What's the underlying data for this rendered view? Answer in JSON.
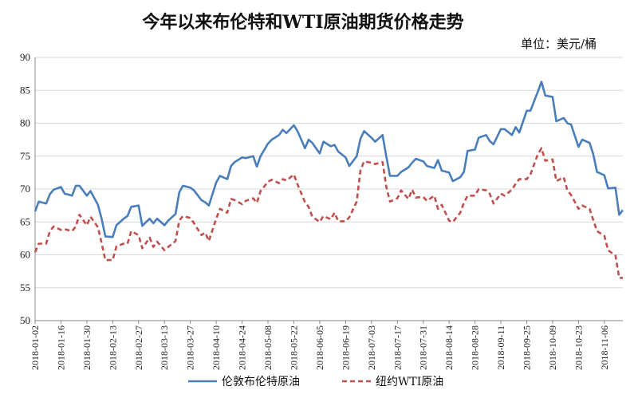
{
  "chart_data": {
    "type": "line",
    "title": "今年以来布伦特和WTI原油期货价格走势",
    "unit_label": "单位：美元/桶",
    "ylim": [
      50,
      90
    ],
    "yticks": [
      50,
      55,
      60,
      65,
      70,
      75,
      80,
      85,
      90
    ],
    "grid": "horizontal",
    "legend_position": "bottom",
    "x_tick_labels": [
      "2018-01-02",
      "2018-01-16",
      "2018-01-30",
      "2018-02-13",
      "2018-02-27",
      "2018-03-13",
      "2018-03-27",
      "2018-04-10",
      "2018-04-24",
      "2018-05-08",
      "2018-05-22",
      "2018-06-05",
      "2018-06-19",
      "2018-07-03",
      "2018-07-17",
      "2018-07-31",
      "2018-08-14",
      "2018-08-28",
      "2018-09-11",
      "2018-09-25",
      "2018-10-09",
      "2018-10-23",
      "2018-11-06"
    ],
    "x": [
      "2018-01-02",
      "2018-01-04",
      "2018-01-08",
      "2018-01-10",
      "2018-01-12",
      "2018-01-16",
      "2018-01-18",
      "2018-01-22",
      "2018-01-24",
      "2018-01-26",
      "2018-01-30",
      "2018-02-01",
      "2018-02-05",
      "2018-02-07",
      "2018-02-09",
      "2018-02-13",
      "2018-02-15",
      "2018-02-19",
      "2018-02-21",
      "2018-02-23",
      "2018-02-27",
      "2018-03-01",
      "2018-03-05",
      "2018-03-07",
      "2018-03-09",
      "2018-03-13",
      "2018-03-15",
      "2018-03-19",
      "2018-03-21",
      "2018-03-23",
      "2018-03-27",
      "2018-03-29",
      "2018-04-02",
      "2018-04-04",
      "2018-04-06",
      "2018-04-10",
      "2018-04-12",
      "2018-04-16",
      "2018-04-18",
      "2018-04-20",
      "2018-04-24",
      "2018-04-26",
      "2018-04-30",
      "2018-05-02",
      "2018-05-04",
      "2018-05-08",
      "2018-05-10",
      "2018-05-14",
      "2018-05-16",
      "2018-05-18",
      "2018-05-22",
      "2018-05-24",
      "2018-05-28",
      "2018-05-30",
      "2018-06-01",
      "2018-06-05",
      "2018-06-07",
      "2018-06-11",
      "2018-06-13",
      "2018-06-15",
      "2018-06-19",
      "2018-06-21",
      "2018-06-25",
      "2018-06-27",
      "2018-06-29",
      "2018-07-03",
      "2018-07-05",
      "2018-07-09",
      "2018-07-11",
      "2018-07-13",
      "2018-07-17",
      "2018-07-19",
      "2018-07-23",
      "2018-07-25",
      "2018-07-27",
      "2018-07-31",
      "2018-08-02",
      "2018-08-06",
      "2018-08-08",
      "2018-08-10",
      "2018-08-14",
      "2018-08-16",
      "2018-08-20",
      "2018-08-22",
      "2018-08-24",
      "2018-08-28",
      "2018-08-30",
      "2018-09-03",
      "2018-09-05",
      "2018-09-07",
      "2018-09-11",
      "2018-09-13",
      "2018-09-17",
      "2018-09-19",
      "2018-09-21",
      "2018-09-25",
      "2018-09-27",
      "2018-10-01",
      "2018-10-03",
      "2018-10-05",
      "2018-10-09",
      "2018-10-11",
      "2018-10-15",
      "2018-10-17",
      "2018-10-19",
      "2018-10-23",
      "2018-10-25",
      "2018-10-29",
      "2018-10-31",
      "2018-11-02",
      "2018-11-06",
      "2018-11-08",
      "2018-11-12",
      "2018-11-14",
      "2018-11-16"
    ],
    "series": [
      {
        "name": "伦敦布伦特原油",
        "color": "#4a7ebb",
        "dash": "solid",
        "values": [
          66.6,
          68.1,
          67.8,
          69.2,
          69.9,
          70.3,
          69.3,
          69.0,
          70.5,
          70.5,
          69.0,
          69.7,
          67.6,
          65.5,
          62.8,
          62.7,
          64.5,
          65.5,
          65.9,
          67.3,
          67.5,
          64.4,
          65.5,
          64.8,
          65.5,
          64.5,
          65.2,
          66.2,
          69.5,
          70.5,
          70.2,
          69.8,
          68.3,
          68.0,
          67.5,
          71.0,
          72.0,
          71.5,
          73.5,
          74.1,
          74.8,
          74.7,
          75.0,
          73.4,
          75.0,
          76.9,
          77.5,
          78.2,
          79.0,
          78.5,
          79.7,
          78.8,
          76.2,
          77.5,
          77.0,
          75.4,
          77.2,
          76.5,
          76.7,
          75.7,
          74.8,
          73.5,
          75.0,
          77.6,
          78.8,
          77.8,
          77.2,
          78.2,
          75.0,
          72.0,
          72.0,
          72.6,
          73.3,
          74.0,
          74.6,
          74.2,
          73.5,
          73.2,
          74.4,
          72.8,
          72.5,
          71.2,
          71.8,
          72.6,
          75.8,
          76.0,
          77.8,
          78.2,
          77.3,
          76.8,
          79.1,
          79.1,
          78.2,
          79.4,
          78.6,
          81.9,
          81.9,
          84.8,
          86.3,
          84.2,
          84.0,
          80.3,
          80.8,
          80.0,
          79.8,
          76.4,
          77.5,
          77.0,
          75.3,
          72.6,
          72.1,
          70.1,
          70.2,
          66.1,
          66.8
        ]
      },
      {
        "name": "纽约WTI原油",
        "color": "#c0504d",
        "dash": "dashed",
        "values": [
          60.4,
          61.7,
          61.7,
          63.6,
          64.3,
          63.8,
          63.9,
          63.6,
          64.3,
          66.1,
          64.5,
          65.8,
          64.2,
          61.8,
          59.2,
          59.2,
          61.3,
          61.7,
          61.7,
          63.6,
          63.0,
          61.0,
          62.6,
          61.2,
          62.0,
          60.7,
          61.2,
          62.1,
          65.2,
          65.9,
          65.6,
          64.8,
          63.0,
          63.4,
          62.1,
          65.5,
          67.0,
          66.4,
          68.5,
          68.3,
          67.7,
          68.2,
          68.6,
          67.9,
          69.7,
          71.1,
          71.4,
          70.9,
          71.5,
          71.3,
          72.2,
          70.7,
          68.0,
          67.3,
          65.8,
          65.0,
          65.9,
          65.4,
          66.4,
          65.1,
          65.1,
          65.7,
          68.1,
          72.8,
          74.2,
          74.0,
          73.8,
          74.1,
          70.4,
          68.1,
          68.6,
          69.8,
          68.5,
          69.9,
          68.7,
          68.8,
          68.2,
          69.0,
          67.0,
          67.6,
          65.2,
          65.0,
          66.4,
          67.9,
          69.0,
          69.0,
          70.0,
          69.8,
          69.3,
          67.8,
          69.3,
          69.0,
          69.9,
          70.8,
          71.5,
          71.5,
          72.2,
          75.3,
          76.2,
          74.3,
          74.5,
          71.2,
          71.8,
          69.8,
          69.1,
          67.0,
          67.5,
          67.0,
          65.3,
          63.6,
          62.9,
          60.7,
          59.9,
          56.5,
          56.5
        ]
      }
    ]
  }
}
